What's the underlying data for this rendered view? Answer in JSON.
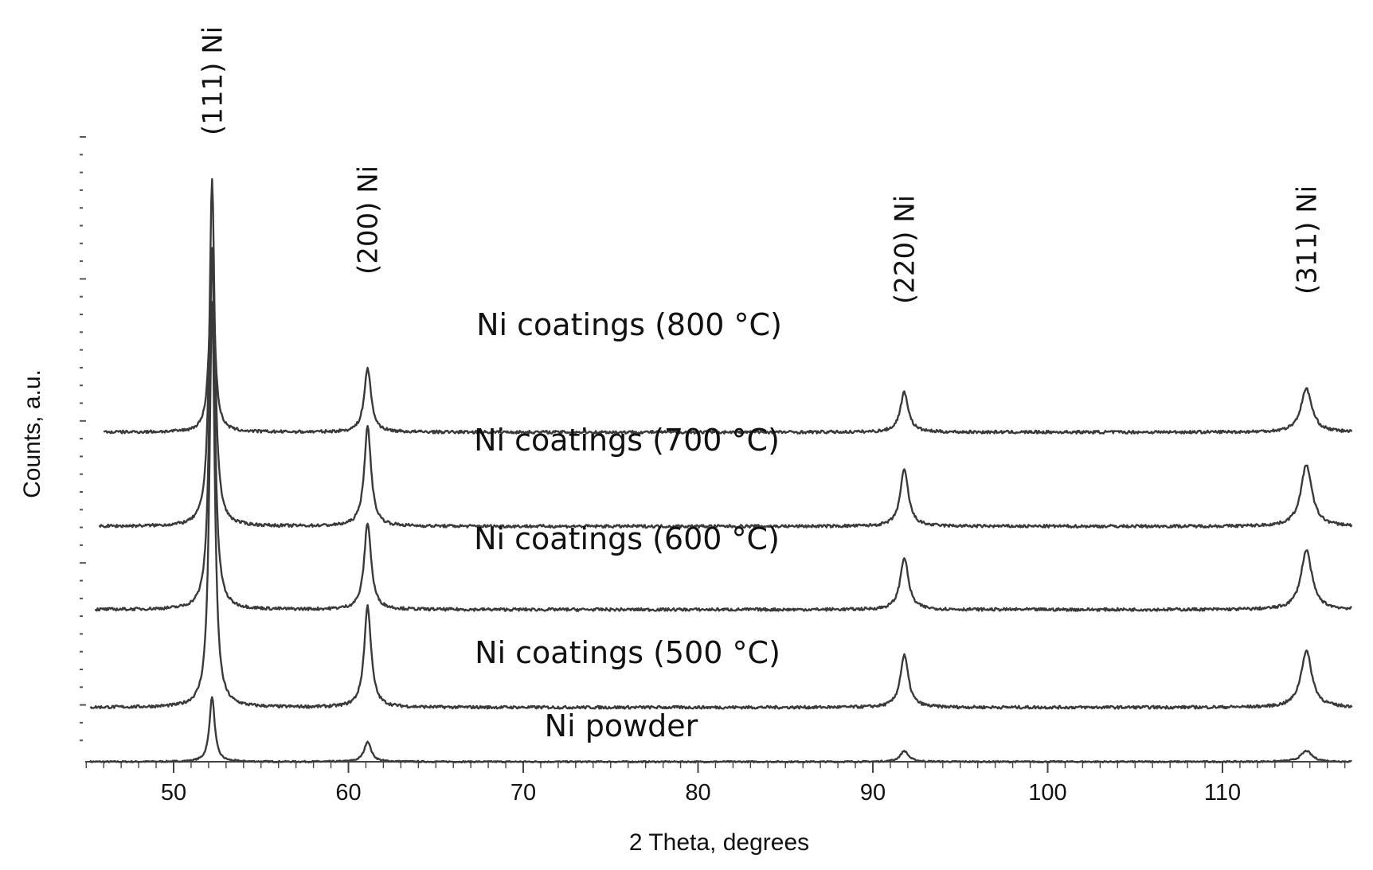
{
  "chart_data": {
    "type": "line",
    "xlabel": "2 Theta, degrees",
    "ylabel": "Counts, a.u.",
    "xlim": [
      45,
      117.5
    ],
    "xticks": [
      50,
      60,
      70,
      80,
      90,
      100,
      110
    ],
    "x_minor_step": 1,
    "y_units": "relative intensity (stacked, offset)",
    "grid": false,
    "peaks": [
      {
        "label": "(111) Ni",
        "x": 52.2
      },
      {
        "label": "(200) Ni",
        "x": 61.1
      },
      {
        "label": "(220) Ni",
        "x": 91.8
      },
      {
        "label": "(311) Ni",
        "x": 114.8
      }
    ],
    "series": [
      {
        "name": "Ni powder",
        "baseline": 0,
        "heights": [
          90,
          28,
          15,
          15
        ]
      },
      {
        "name": "Ni coatings (500 °C)",
        "baseline": 75,
        "heights": [
          560,
          140,
          72,
          78
        ]
      },
      {
        "name": "Ni coatings (600 °C)",
        "baseline": 210,
        "heights": [
          500,
          120,
          72,
          82
        ]
      },
      {
        "name": "Ni coatings (700 °C)",
        "baseline": 325,
        "heights": [
          480,
          137,
          78,
          85
        ]
      },
      {
        "name": "Ni coatings (800 °C)",
        "baseline": 455,
        "heights": [
          245,
          88,
          55,
          60
        ]
      }
    ]
  }
}
